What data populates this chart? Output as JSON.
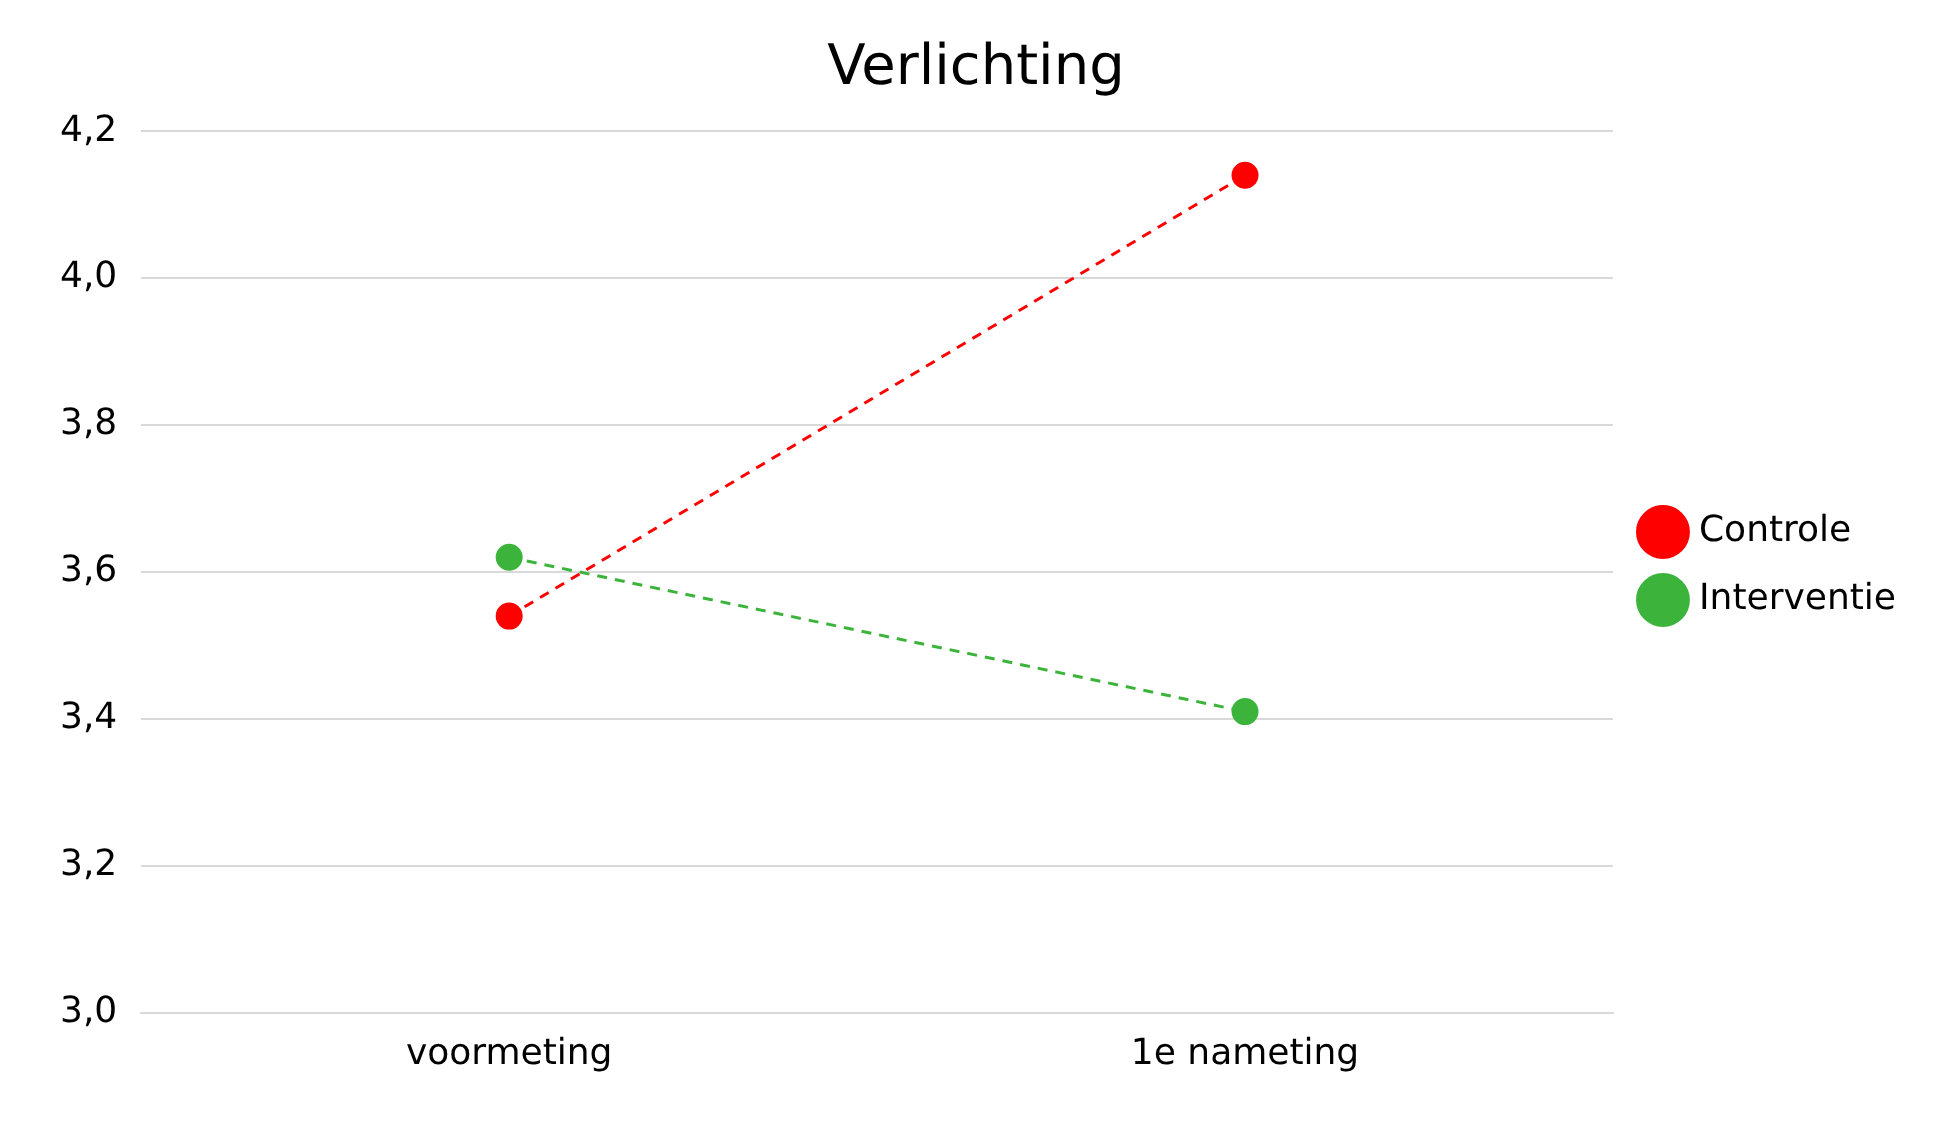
{
  "chart_data": {
    "type": "line",
    "title": "Verlichting",
    "categories": [
      "voormeting",
      "1e nameting"
    ],
    "series": [
      {
        "name": "Controle",
        "color": "#ff0000",
        "values": [
          3.54,
          4.14
        ]
      },
      {
        "name": "Interventie",
        "color": "#3cb43c",
        "values": [
          3.62,
          3.41
        ]
      }
    ],
    "ylim": [
      3.0,
      4.2
    ],
    "yticks": [
      {
        "value": 3.0,
        "label": "3,0"
      },
      {
        "value": 3.2,
        "label": "3,2"
      },
      {
        "value": 3.4,
        "label": "3,4"
      },
      {
        "value": 3.6,
        "label": "3,6"
      },
      {
        "value": 3.8,
        "label": "3,8"
      },
      {
        "value": 4.0,
        "label": "4,0"
      },
      {
        "value": 4.2,
        "label": "4,2"
      }
    ],
    "grid": "y",
    "legend": "right",
    "marker": "circle",
    "line_style": "dashed"
  }
}
